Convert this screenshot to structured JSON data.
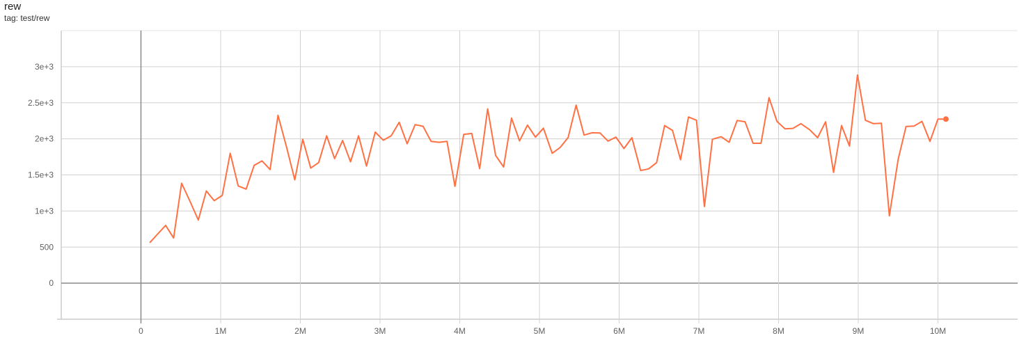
{
  "header": {
    "title": "rew",
    "tag": "tag: test/rew"
  },
  "chart_data": {
    "type": "line",
    "title": "rew",
    "xlabel": "",
    "ylabel": "",
    "xlim": [
      -1.0,
      11.0
    ],
    "ylim": [
      -500,
      3500
    ],
    "x_unit": "M",
    "grid": true,
    "xticks": [
      0,
      1,
      2,
      3,
      4,
      5,
      6,
      7,
      8,
      9,
      10
    ],
    "xtick_labels": [
      "0",
      "1M",
      "2M",
      "3M",
      "4M",
      "5M",
      "6M",
      "7M",
      "8M",
      "9M",
      "10M"
    ],
    "yticks": [
      0,
      500,
      1000,
      1500,
      2000,
      2500,
      3000
    ],
    "ytick_labels": [
      "0",
      "500",
      "1e+3",
      "1.5e+3",
      "2e+3",
      "2.5e+3",
      "3e+3"
    ],
    "series": [
      {
        "color": "#ff7043",
        "x": [
          0.11,
          0.21,
          0.31,
          0.41,
          0.51,
          0.61,
          0.72,
          0.82,
          0.92,
          1.02,
          1.12,
          1.22,
          1.32,
          1.42,
          1.52,
          1.62,
          1.72,
          1.83,
          1.93,
          2.03,
          2.13,
          2.23,
          2.33,
          2.43,
          2.53,
          2.63,
          2.73,
          2.83,
          2.94,
          3.04,
          3.14,
          3.24,
          3.34,
          3.44,
          3.54,
          3.64,
          3.74,
          3.84,
          3.94,
          4.05,
          4.15,
          4.25,
          4.35,
          4.45,
          4.55,
          4.65,
          4.75,
          4.85,
          4.95,
          5.05,
          5.16,
          5.26,
          5.36,
          5.46,
          5.56,
          5.66,
          5.76,
          5.86,
          5.96,
          6.06,
          6.16,
          6.27,
          6.37,
          6.47,
          6.57,
          6.67,
          6.77,
          6.87,
          6.97,
          7.07,
          7.17,
          7.28,
          7.38,
          7.48,
          7.58,
          7.68,
          7.78,
          7.88,
          7.98,
          8.08,
          8.18,
          8.28,
          8.39,
          8.49,
          8.59,
          8.69,
          8.79,
          8.89,
          8.99,
          9.09,
          9.19,
          9.29,
          9.39,
          9.5,
          9.6,
          9.7,
          9.8,
          9.9,
          10.0,
          10.1
        ],
        "y": [
          561,
          681,
          800,
          626,
          1384,
          1148,
          874,
          1277,
          1142,
          1216,
          1800,
          1348,
          1303,
          1632,
          1694,
          1574,
          2326,
          1874,
          1432,
          1994,
          1594,
          1671,
          2042,
          1726,
          1977,
          1681,
          2042,
          1623,
          2094,
          1981,
          2042,
          2229,
          1932,
          2197,
          2174,
          1965,
          1952,
          1965,
          1342,
          2061,
          2074,
          1587,
          2416,
          1771,
          1610,
          2287,
          1971,
          2190,
          2023,
          2148,
          1800,
          1881,
          2019,
          2468,
          2052,
          2084,
          2081,
          1968,
          2023,
          1865,
          2016,
          1561,
          1584,
          1671,
          2184,
          2116,
          1710,
          2303,
          2258,
          1061,
          1994,
          2029,
          1952,
          2255,
          2236,
          1939,
          1939,
          2571,
          2242,
          2139,
          2145,
          2210,
          2126,
          2016,
          2235,
          1535,
          2184,
          1900,
          2884,
          2258,
          2210,
          2216,
          932,
          1713,
          2171,
          2177,
          2242,
          1965,
          2274,
          2274
        ]
      }
    ]
  }
}
